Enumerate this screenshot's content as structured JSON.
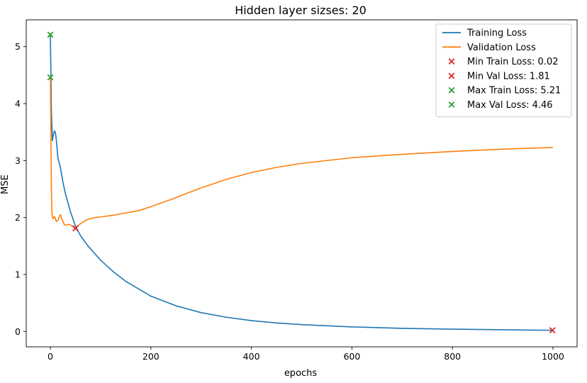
{
  "chart_data": {
    "type": "line",
    "title": "Hidden layer sizses: 20",
    "xlabel": "epochs",
    "ylabel": "MSE",
    "xlim": [
      -48,
      1048
    ],
    "ylim": [
      -0.27,
      5.47
    ],
    "xticks": [
      0,
      200,
      400,
      600,
      800,
      1000
    ],
    "yticks": [
      0,
      1,
      2,
      3,
      4,
      5
    ],
    "grid": false,
    "legend_position": "top-right",
    "series": [
      {
        "name": "Training Loss",
        "color": "#1f77b4",
        "x": [
          0,
          1,
          2,
          4,
          6,
          8,
          10,
          12,
          15,
          20,
          25,
          30,
          40,
          50,
          60,
          75,
          100,
          125,
          150,
          175,
          200,
          250,
          300,
          350,
          400,
          450,
          500,
          600,
          700,
          800,
          900,
          1000
        ],
        "y": [
          5.21,
          4.6,
          3.9,
          3.35,
          3.45,
          3.52,
          3.5,
          3.35,
          3.05,
          2.88,
          2.62,
          2.42,
          2.1,
          1.85,
          1.68,
          1.5,
          1.25,
          1.05,
          0.88,
          0.75,
          0.62,
          0.45,
          0.33,
          0.25,
          0.19,
          0.15,
          0.12,
          0.08,
          0.055,
          0.04,
          0.03,
          0.02
        ]
      },
      {
        "name": "Validation Loss",
        "color": "#ff7f0e",
        "x": [
          0,
          1,
          2,
          3,
          4,
          6,
          8,
          10,
          12,
          15,
          18,
          20,
          22,
          25,
          28,
          32,
          38,
          45,
          50,
          55,
          65,
          75,
          90,
          100,
          125,
          150,
          175,
          200,
          250,
          300,
          350,
          400,
          450,
          500,
          600,
          700,
          800,
          900,
          1000
        ],
        "y": [
          4.46,
          3.6,
          2.5,
          2.1,
          2.0,
          1.98,
          2.02,
          1.98,
          1.93,
          1.95,
          2.02,
          2.05,
          2.0,
          1.93,
          1.87,
          1.87,
          1.88,
          1.84,
          1.81,
          1.86,
          1.92,
          1.97,
          2.0,
          2.01,
          2.04,
          2.08,
          2.12,
          2.19,
          2.35,
          2.52,
          2.67,
          2.79,
          2.88,
          2.95,
          3.05,
          3.11,
          3.16,
          3.2,
          3.23
        ]
      }
    ],
    "markers": [
      {
        "name": "Min Train Loss: 0.02",
        "x": 999,
        "y": 0.02,
        "color": "#d62728"
      },
      {
        "name": "Min Val Loss: 1.81",
        "x": 50,
        "y": 1.81,
        "color": "#d62728"
      },
      {
        "name": "Max Train Loss: 5.21",
        "x": 0,
        "y": 5.21,
        "color": "#2ca02c"
      },
      {
        "name": "Max Val Loss: 4.46",
        "x": 0,
        "y": 4.46,
        "color": "#2ca02c"
      }
    ]
  }
}
